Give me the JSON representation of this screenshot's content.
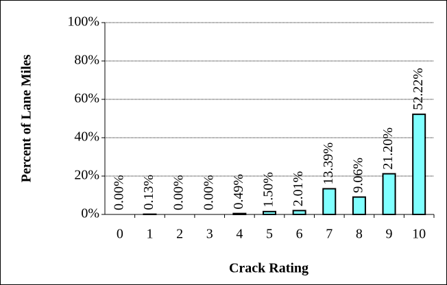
{
  "chart_data": {
    "type": "bar",
    "xlabel": "Crack Rating",
    "ylabel": "Percent of Lane Miles",
    "categories": [
      "0",
      "1",
      "2",
      "3",
      "4",
      "5",
      "6",
      "7",
      "8",
      "9",
      "10"
    ],
    "values": [
      0,
      0.13,
      0,
      0,
      0.49,
      1.5,
      2.01,
      13.39,
      9.06,
      21.2,
      52.22
    ],
    "value_labels": [
      "0.00%",
      "0.13%",
      "0.00%",
      "0.00%",
      "0.49%",
      "1.50%",
      "2.01%",
      "13.39%",
      "9.06%",
      "21.20%",
      "52.22%"
    ],
    "color": "#80ffff",
    "ylim": [
      0,
      100
    ],
    "yticks": [
      {
        "value": 0,
        "label": "0%"
      },
      {
        "value": 20,
        "label": "20%"
      },
      {
        "value": 40,
        "label": "40%"
      },
      {
        "value": 60,
        "label": "60%"
      },
      {
        "value": 80,
        "label": "80%"
      },
      {
        "value": 100,
        "label": "100%"
      }
    ],
    "grid": true
  }
}
